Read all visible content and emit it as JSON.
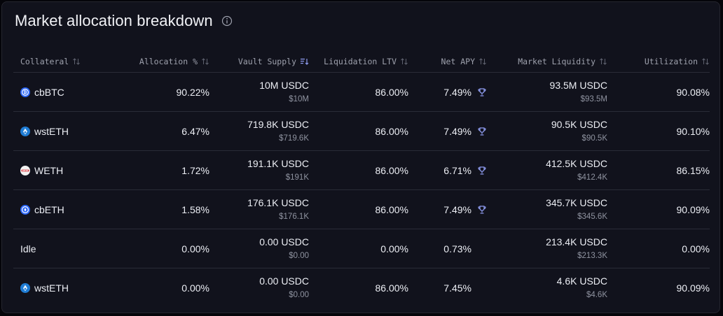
{
  "panel": {
    "title": "Market allocation breakdown"
  },
  "columns": [
    {
      "label": "Collateral"
    },
    {
      "label": "Allocation %"
    },
    {
      "label": "Vault Supply"
    },
    {
      "label": "Liquidation LTV"
    },
    {
      "label": "Net APY"
    },
    {
      "label": "Market Liquidity"
    },
    {
      "label": "Utilization"
    }
  ],
  "rows": [
    {
      "collateral": "cbBTC",
      "icon": "cbbtc-icon",
      "allocation": "90.22%",
      "supply": "10M USDC",
      "supply_usd": "$10M",
      "ltv": "86.00%",
      "apy": "7.49%",
      "liquidity": "93.5M USDC",
      "liquidity_usd": "$93.5M",
      "utilization": "90.08%"
    },
    {
      "collateral": "wstETH",
      "icon": "wsteth-icon",
      "allocation": "6.47%",
      "supply": "719.8K USDC",
      "supply_usd": "$719.6K",
      "ltv": "86.00%",
      "apy": "7.49%",
      "liquidity": "90.5K USDC",
      "liquidity_usd": "$90.5K",
      "utilization": "90.10%"
    },
    {
      "collateral": "WETH",
      "icon": "weth-icon",
      "allocation": "1.72%",
      "supply": "191.1K USDC",
      "supply_usd": "$191K",
      "ltv": "86.00%",
      "apy": "6.71%",
      "liquidity": "412.5K USDC",
      "liquidity_usd": "$412.4K",
      "utilization": "86.15%"
    },
    {
      "collateral": "cbETH",
      "icon": "cbeth-icon",
      "allocation": "1.58%",
      "supply": "176.1K USDC",
      "supply_usd": "$176.1K",
      "ltv": "86.00%",
      "apy": "7.49%",
      "liquidity": "345.7K USDC",
      "liquidity_usd": "$345.6K",
      "utilization": "90.09%"
    },
    {
      "collateral": "Idle",
      "icon": "",
      "allocation": "0.00%",
      "supply": "0.00 USDC",
      "supply_usd": "$0.00",
      "ltv": "0.00%",
      "apy": "0.73%",
      "liquidity": "213.4K USDC",
      "liquidity_usd": "$213.3K",
      "utilization": "0.00%"
    },
    {
      "collateral": "wstETH",
      "icon": "wsteth-icon",
      "allocation": "0.00%",
      "supply": "0.00 USDC",
      "supply_usd": "$0.00",
      "ltv": "86.00%",
      "apy": "7.45%",
      "liquidity": "4.6K USDC",
      "liquidity_usd": "$4.6K",
      "utilization": "90.09%"
    }
  ],
  "colors": {
    "background": "#11121c",
    "border": "#2a2c37",
    "accent": "#8f9cf0",
    "text": "#eceef4",
    "muted": "#8f93a0"
  }
}
